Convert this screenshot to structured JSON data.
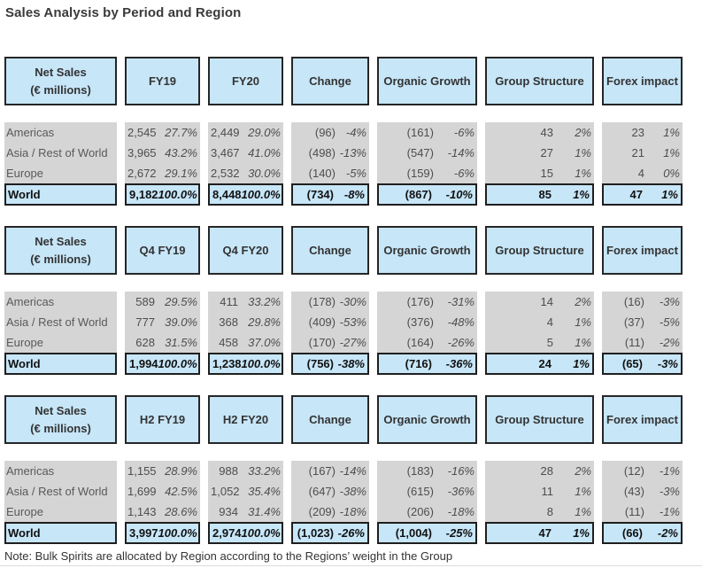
{
  "page": {
    "title": "Sales Analysis by Period and Region",
    "note": "Note: Bulk Spirits are allocated by Region according to the Regions’ weight in the Group"
  },
  "colors": {
    "header_fill": "#c7e6f8",
    "row_fill": "#d5d5d5",
    "world_fill": "#c7e6f8",
    "border": "#262626"
  },
  "tables": [
    {
      "headers": [
        "Net Sales\n(€ millions)",
        "FY19",
        "FY20",
        "Change",
        "Organic Growth",
        "Group Structure",
        "Forex impact"
      ],
      "rows": [
        {
          "region": "Americas",
          "cells": [
            [
              "2,545",
              "27.7%"
            ],
            [
              "2,449",
              "29.0%"
            ],
            [
              "(96)",
              "-4%"
            ],
            [
              "(161)",
              "-6%"
            ],
            [
              "43",
              "2%"
            ],
            [
              "23",
              "1%"
            ]
          ]
        },
        {
          "region": "Asia / Rest of World",
          "cells": [
            [
              "3,965",
              "43.2%"
            ],
            [
              "3,467",
              "41.0%"
            ],
            [
              "(498)",
              "-13%"
            ],
            [
              "(547)",
              "-14%"
            ],
            [
              "27",
              "1%"
            ],
            [
              "21",
              "1%"
            ]
          ]
        },
        {
          "region": "Europe",
          "cells": [
            [
              "2,672",
              "29.1%"
            ],
            [
              "2,532",
              "30.0%"
            ],
            [
              "(140)",
              "-5%"
            ],
            [
              "(159)",
              "-6%"
            ],
            [
              "15",
              "1%"
            ],
            [
              "4",
              "0%"
            ]
          ]
        }
      ],
      "world": {
        "region": "World",
        "cells": [
          [
            "9,182",
            "100.0%"
          ],
          [
            "8,448",
            "100.0%"
          ],
          [
            "(734)",
            "-8%"
          ],
          [
            "(867)",
            "-10%"
          ],
          [
            "85",
            "1%"
          ],
          [
            "47",
            "1%"
          ]
        ]
      }
    },
    {
      "headers": [
        "Net Sales\n(€ millions)",
        "Q4 FY19",
        "Q4 FY20",
        "Change",
        "Organic Growth",
        "Group Structure",
        "Forex impact"
      ],
      "rows": [
        {
          "region": "Americas",
          "cells": [
            [
              "589",
              "29.5%"
            ],
            [
              "411",
              "33.2%"
            ],
            [
              "(178)",
              "-30%"
            ],
            [
              "(176)",
              "-31%"
            ],
            [
              "14",
              "2%"
            ],
            [
              "(16)",
              "-3%"
            ]
          ]
        },
        {
          "region": "Asia / Rest of World",
          "cells": [
            [
              "777",
              "39.0%"
            ],
            [
              "368",
              "29.8%"
            ],
            [
              "(409)",
              "-53%"
            ],
            [
              "(376)",
              "-48%"
            ],
            [
              "4",
              "1%"
            ],
            [
              "(37)",
              "-5%"
            ]
          ]
        },
        {
          "region": "Europe",
          "cells": [
            [
              "628",
              "31.5%"
            ],
            [
              "458",
              "37.0%"
            ],
            [
              "(170)",
              "-27%"
            ],
            [
              "(164)",
              "-26%"
            ],
            [
              "5",
              "1%"
            ],
            [
              "(11)",
              "-2%"
            ]
          ]
        }
      ],
      "world": {
        "region": "World",
        "cells": [
          [
            "1,994",
            "100.0%"
          ],
          [
            "1,238",
            "100.0%"
          ],
          [
            "(756)",
            "-38%"
          ],
          [
            "(716)",
            "-36%"
          ],
          [
            "24",
            "1%"
          ],
          [
            "(65)",
            "-3%"
          ]
        ]
      }
    },
    {
      "headers": [
        "Net Sales\n(€ millions)",
        "H2 FY19",
        "H2 FY20",
        "Change",
        "Organic Growth",
        "Group Structure",
        "Forex impact"
      ],
      "rows": [
        {
          "region": "Americas",
          "cells": [
            [
              "1,155",
              "28.9%"
            ],
            [
              "988",
              "33.2%"
            ],
            [
              "(167)",
              "-14%"
            ],
            [
              "(183)",
              "-16%"
            ],
            [
              "28",
              "2%"
            ],
            [
              "(12)",
              "-1%"
            ]
          ]
        },
        {
          "region": "Asia / Rest of World",
          "cells": [
            [
              "1,699",
              "42.5%"
            ],
            [
              "1,052",
              "35.4%"
            ],
            [
              "(647)",
              "-38%"
            ],
            [
              "(615)",
              "-36%"
            ],
            [
              "11",
              "1%"
            ],
            [
              "(43)",
              "-3%"
            ]
          ]
        },
        {
          "region": "Europe",
          "cells": [
            [
              "1,143",
              "28.6%"
            ],
            [
              "934",
              "31.4%"
            ],
            [
              "(209)",
              "-18%"
            ],
            [
              "(206)",
              "-18%"
            ],
            [
              "8",
              "1%"
            ],
            [
              "(11)",
              "-1%"
            ]
          ]
        }
      ],
      "world": {
        "region": "World",
        "cells": [
          [
            "3,997",
            "100.0%"
          ],
          [
            "2,974",
            "100.0%"
          ],
          [
            "(1,023)",
            "-26%"
          ],
          [
            "(1,004)",
            "-25%"
          ],
          [
            "47",
            "1%"
          ],
          [
            "(66)",
            "-2%"
          ]
        ]
      }
    }
  ]
}
